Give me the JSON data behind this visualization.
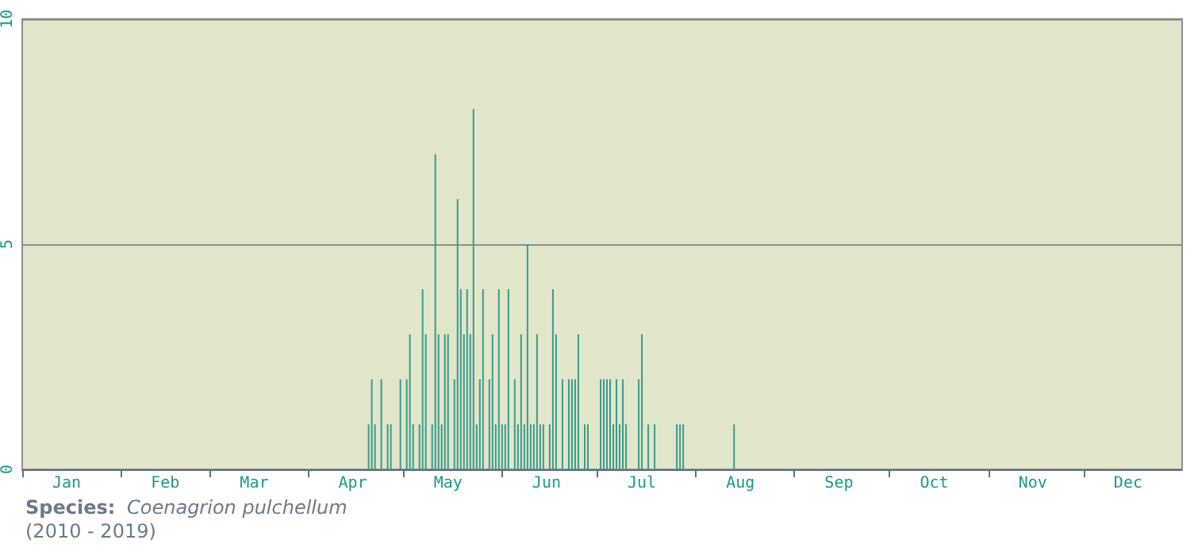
{
  "chart_data": {
    "type": "bar",
    "x": [
      "--04-20",
      "--04-21",
      "--04-22",
      "--04-24",
      "--04-26",
      "--04-27",
      "--04-30",
      "--05-02",
      "--05-03",
      "--05-04",
      "--05-06",
      "--05-07",
      "--05-08",
      "--05-10",
      "--05-11",
      "--05-12",
      "--05-13",
      "--05-14",
      "--05-15",
      "--05-17",
      "--05-18",
      "--05-19",
      "--05-20",
      "--05-21",
      "--05-22",
      "--05-23",
      "--05-24",
      "--05-25",
      "--05-26",
      "--05-28",
      "--05-29",
      "--05-30",
      "--05-31",
      "--06-01",
      "--06-02",
      "--06-03",
      "--06-05",
      "--06-06",
      "--06-07",
      "--06-08",
      "--06-09",
      "--06-10",
      "--06-11",
      "--06-12",
      "--06-13",
      "--06-14",
      "--06-16",
      "--06-17",
      "--06-18",
      "--06-20",
      "--06-22",
      "--06-23",
      "--06-24",
      "--06-25",
      "--06-27",
      "--06-28",
      "--07-02",
      "--07-03",
      "--07-04",
      "--07-05",
      "--07-06",
      "--07-07",
      "--07-08",
      "--07-09",
      "--07-10",
      "--07-14",
      "--07-15",
      "--07-17",
      "--07-19",
      "--07-26",
      "--07-27",
      "--07-28",
      "--08-13"
    ],
    "values": [
      1,
      2,
      1,
      2,
      1,
      1,
      2,
      2,
      3,
      1,
      1,
      4,
      3,
      1,
      7,
      3,
      1,
      3,
      3,
      2,
      6,
      4,
      3,
      4,
      3,
      8,
      1,
      2,
      4,
      2,
      3,
      1,
      4,
      1,
      1,
      4,
      2,
      1,
      3,
      1,
      5,
      1,
      1,
      3,
      1,
      1,
      1,
      4,
      3,
      2,
      2,
      2,
      2,
      3,
      1,
      1,
      2,
      2,
      2,
      2,
      1,
      2,
      1,
      2,
      1,
      2,
      3,
      1,
      1,
      1,
      1,
      1,
      1
    ],
    "color": "#3a9b8e",
    "xlim": [
      "--01-01",
      "--12-31"
    ],
    "xticks": [
      {
        "value": "--01-01",
        "label": null
      },
      {
        "value": "--01-15",
        "label": "Jan"
      },
      {
        "value": "--02-01",
        "label": null
      },
      {
        "value": "--02-15",
        "label": "Feb"
      },
      {
        "value": "--03-01",
        "label": null
      },
      {
        "value": "--03-15",
        "label": "Mar"
      },
      {
        "value": "--04-01",
        "label": null
      },
      {
        "value": "--04-15",
        "label": "Apr"
      },
      {
        "value": "--05-01",
        "label": null
      },
      {
        "value": "--05-15",
        "label": "May"
      },
      {
        "value": "--06-01",
        "label": null
      },
      {
        "value": "--06-15",
        "label": "Jun"
      },
      {
        "value": "--07-01",
        "label": null
      },
      {
        "value": "--07-15",
        "label": "Jul"
      },
      {
        "value": "--08-01",
        "label": null
      },
      {
        "value": "--08-15",
        "label": "Aug"
      },
      {
        "value": "--09-01",
        "label": null
      },
      {
        "value": "--09-15",
        "label": "Sep"
      },
      {
        "value": "--10-01",
        "label": null
      },
      {
        "value": "--10-15",
        "label": "Oct"
      },
      {
        "value": "--11-01",
        "label": null
      },
      {
        "value": "--11-15",
        "label": "Nov"
      },
      {
        "value": "--12-01",
        "label": null
      },
      {
        "value": "--12-15",
        "label": "Dec"
      }
    ],
    "ylim": [
      0,
      10
    ],
    "yticks": [
      0,
      5,
      10
    ],
    "grid": "y",
    "annotations": [
      "Species:",
      "Coenagrion pulchellum",
      "(2010 - 2019)"
    ]
  }
}
